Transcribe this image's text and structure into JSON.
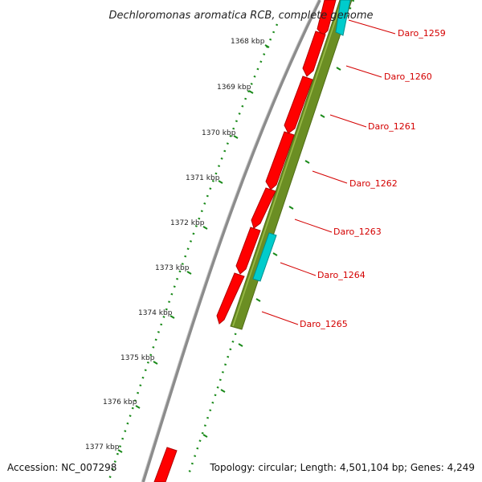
{
  "title": "Dechloromonas aromatica RCB, complete genome",
  "ticks": [
    "1368 kbp",
    "1369 kbp",
    "1370 kbp",
    "1371 kbp",
    "1372 kbp",
    "1373 kbp",
    "1374 kbp",
    "1375 kbp",
    "1376 kbp",
    "1377 kbp"
  ],
  "genes": [
    "Daro_1259",
    "Daro_1260",
    "Daro_1261",
    "Daro_1262",
    "Daro_1263",
    "Daro_1264",
    "Daro_1265"
  ],
  "footer": {
    "accession": "Accession: NC_007298",
    "topology": "Topology: circular; Length: 4,501,104 bp; Genes: 4,249"
  },
  "colors": {
    "cds": "#ff0000",
    "gene_track": "#6b8e23",
    "feature": "#00cccc",
    "backbone": "#8c8c8c",
    "ticks": "#1a8a1a",
    "label": "#d40000"
  }
}
